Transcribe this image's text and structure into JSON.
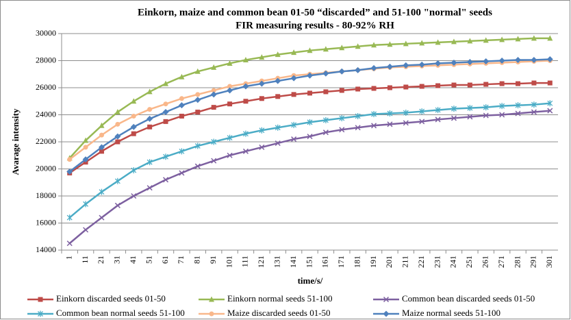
{
  "chart_data": {
    "type": "line",
    "title": "Einkorn, maize and common bean 01-50 “discarded” and 51-100 \"normal\" seeds",
    "subtitle": "FIR measuring results - 80-92% RH",
    "x_label": "time/s/",
    "y_label": "Avarage intensity",
    "categories": [
      "1",
      "11",
      "21",
      "31",
      "41",
      "51",
      "61",
      "71",
      "81",
      "91",
      "101",
      "111",
      "121",
      "131",
      "141",
      "151",
      "161",
      "171",
      "181",
      "191",
      "201",
      "211",
      "221",
      "231",
      "241",
      "251",
      "261",
      "271",
      "281",
      "291",
      "301"
    ],
    "ylim": [
      14000,
      30000
    ],
    "yticks": [
      14000,
      16000,
      18000,
      20000,
      22000,
      24000,
      26000,
      28000,
      30000
    ],
    "grid": true,
    "series": [
      {
        "name": "Einkorn discarded seeds 01-50",
        "color": "#be4b48",
        "marker": "square",
        "values": [
          19700,
          20500,
          21300,
          22000,
          22600,
          23100,
          23500,
          23900,
          24200,
          24550,
          24800,
          25000,
          25200,
          25350,
          25500,
          25600,
          25700,
          25800,
          25900,
          25950,
          26000,
          26050,
          26100,
          26150,
          26200,
          26200,
          26250,
          26300,
          26300,
          26350,
          26350
        ]
      },
      {
        "name": "Einkorn normal seeds 51-100",
        "color": "#98b954",
        "marker": "triangle",
        "values": [
          20800,
          22100,
          23200,
          24200,
          25000,
          25700,
          26300,
          26800,
          27200,
          27500,
          27800,
          28050,
          28250,
          28450,
          28600,
          28750,
          28850,
          28950,
          29050,
          29150,
          29200,
          29250,
          29300,
          29350,
          29400,
          29450,
          29500,
          29550,
          29600,
          29650,
          29650
        ]
      },
      {
        "name": "Common bean discarded seeds 01-50",
        "color": "#7d60a0",
        "marker": "x",
        "values": [
          14500,
          15500,
          16400,
          17300,
          18000,
          18600,
          19200,
          19700,
          20200,
          20600,
          21000,
          21300,
          21600,
          21900,
          22200,
          22400,
          22700,
          22900,
          23050,
          23200,
          23300,
          23400,
          23500,
          23650,
          23750,
          23850,
          23950,
          24000,
          24100,
          24200,
          24300
        ]
      },
      {
        "name": "Common bean normal seeds 51-100",
        "color": "#4bacc6",
        "marker": "star",
        "values": [
          16400,
          17400,
          18300,
          19100,
          19900,
          20500,
          20900,
          21300,
          21700,
          22000,
          22300,
          22600,
          22850,
          23050,
          23250,
          23450,
          23600,
          23750,
          23900,
          24050,
          24100,
          24150,
          24250,
          24350,
          24450,
          24500,
          24550,
          24650,
          24700,
          24750,
          24850
        ]
      },
      {
        "name": "Maize discarded seeds 01-50",
        "color": "#f9b78a",
        "marker": "circle",
        "values": [
          20700,
          21600,
          22500,
          23300,
          23900,
          24400,
          24800,
          25200,
          25500,
          25800,
          26100,
          26300,
          26500,
          26700,
          26900,
          27000,
          27100,
          27200,
          27300,
          27400,
          27500,
          27550,
          27600,
          27650,
          27700,
          27750,
          27800,
          27850,
          27900,
          27950,
          28000
        ]
      },
      {
        "name": "Maize normal seeds 51-100",
        "color": "#4f81bd",
        "marker": "diamond",
        "values": [
          19800,
          20700,
          21600,
          22400,
          23100,
          23700,
          24200,
          24700,
          25100,
          25500,
          25800,
          26100,
          26300,
          26500,
          26700,
          26900,
          27050,
          27200,
          27300,
          27450,
          27550,
          27650,
          27700,
          27800,
          27850,
          27900,
          27950,
          28000,
          28050,
          28050,
          28100
        ]
      }
    ]
  }
}
